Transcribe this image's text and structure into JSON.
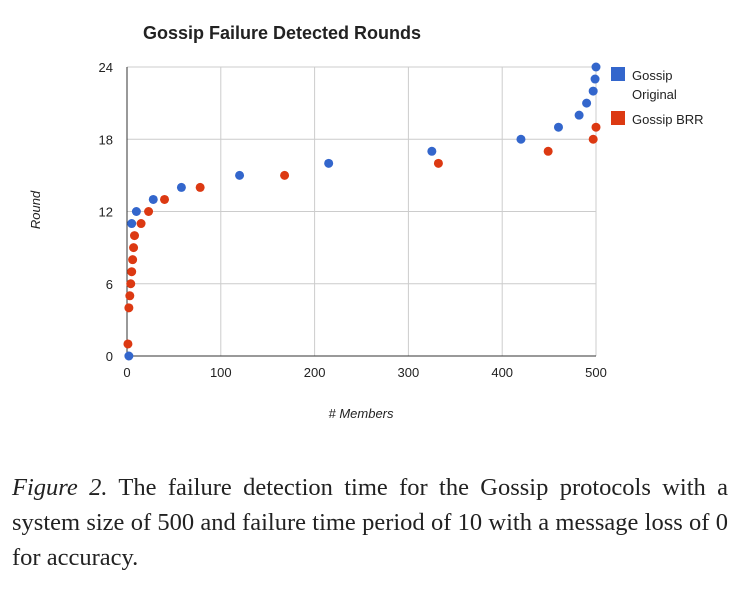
{
  "chart_data": {
    "type": "scatter",
    "title": "Gossip Failure Detected Rounds",
    "xlabel": "# Members",
    "ylabel": "Round",
    "xlim": [
      0,
      500
    ],
    "ylim": [
      0,
      24
    ],
    "xticks": [
      "0",
      "100",
      "200",
      "300",
      "400",
      "500"
    ],
    "yticks": [
      "0",
      "6",
      "12",
      "18",
      "24"
    ],
    "grid": true,
    "legend_position": "right",
    "series": [
      {
        "name": "Gossip Original",
        "color": "#3366cc",
        "points": [
          [
            2,
            0
          ],
          [
            5,
            11
          ],
          [
            10,
            12
          ],
          [
            28,
            13
          ],
          [
            58,
            14
          ],
          [
            120,
            15
          ],
          [
            215,
            16
          ],
          [
            325,
            17
          ],
          [
            420,
            18
          ],
          [
            460,
            19
          ],
          [
            482,
            20
          ],
          [
            490,
            21
          ],
          [
            497,
            22
          ],
          [
            499,
            23
          ],
          [
            500,
            24
          ]
        ]
      },
      {
        "name": "Gossip BRR",
        "color": "#dc3912",
        "points": [
          [
            1,
            1
          ],
          [
            2,
            4
          ],
          [
            3,
            5
          ],
          [
            4,
            6
          ],
          [
            5,
            7
          ],
          [
            6,
            8
          ],
          [
            7,
            9
          ],
          [
            8,
            10
          ],
          [
            15,
            11
          ],
          [
            23,
            12
          ],
          [
            40,
            13
          ],
          [
            78,
            14
          ],
          [
            168,
            15
          ],
          [
            332,
            16
          ],
          [
            449,
            17
          ],
          [
            497,
            18
          ],
          [
            500,
            19
          ]
        ]
      }
    ]
  },
  "legend": {
    "original_line1": "Gossip",
    "original_line2": "Original",
    "brr": "Gossip BRR"
  },
  "caption": {
    "label": "Figure 2.",
    "text": " The failure detection time for the Gossip protocols with a system size of 500 and failure time period of 10 with a message loss of 0 for accuracy."
  }
}
